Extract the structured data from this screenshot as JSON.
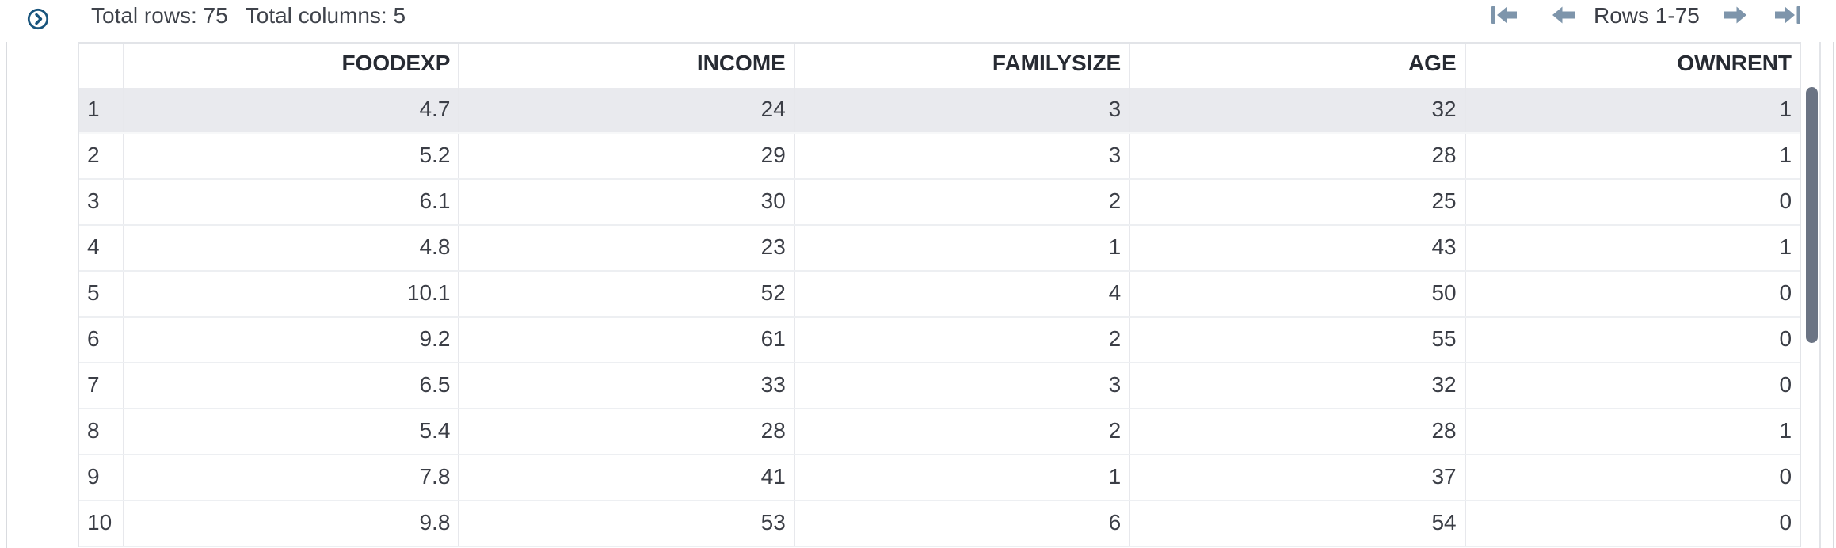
{
  "toolbar": {
    "total_rows": "Total rows: 75",
    "total_columns": "Total columns: 5"
  },
  "pagination": {
    "label": "Rows 1-75",
    "icons": {
      "first": "first-page-arrow",
      "previous": "previous-page-arrow",
      "next": "next-page-arrow",
      "last": "last-page-arrow"
    }
  },
  "expand_icon_name": "chevron-right-circle",
  "table": {
    "row_number_header": "",
    "columns": [
      "FOODEXP",
      "INCOME",
      "FAMILYSIZE",
      "AGE",
      "OWNRENT"
    ],
    "rows": [
      {
        "row_number": "1",
        "selected": true,
        "values": [
          "4.7",
          "24",
          "3",
          "32",
          "1"
        ]
      },
      {
        "row_number": "2",
        "selected": false,
        "values": [
          "5.2",
          "29",
          "3",
          "28",
          "1"
        ]
      },
      {
        "row_number": "3",
        "selected": false,
        "values": [
          "6.1",
          "30",
          "2",
          "25",
          "0"
        ]
      },
      {
        "row_number": "4",
        "selected": false,
        "values": [
          "4.8",
          "23",
          "1",
          "43",
          "1"
        ]
      },
      {
        "row_number": "5",
        "selected": false,
        "values": [
          "10.1",
          "52",
          "4",
          "50",
          "0"
        ]
      },
      {
        "row_number": "6",
        "selected": false,
        "values": [
          "9.2",
          "61",
          "2",
          "55",
          "0"
        ]
      },
      {
        "row_number": "7",
        "selected": false,
        "values": [
          "6.5",
          "33",
          "3",
          "32",
          "0"
        ]
      },
      {
        "row_number": "8",
        "selected": false,
        "values": [
          "5.4",
          "28",
          "2",
          "28",
          "1"
        ]
      },
      {
        "row_number": "9",
        "selected": false,
        "values": [
          "7.8",
          "41",
          "1",
          "37",
          "0"
        ]
      },
      {
        "row_number": "10",
        "selected": false,
        "values": [
          "9.8",
          "53",
          "6",
          "54",
          "0"
        ]
      }
    ]
  },
  "colors": {
    "arrow_accent": "#7e95ab",
    "expand_icon_blue": "#19557d",
    "selected_row_bg": "#e9eaee",
    "scrollbar_thumb": "#6b7484",
    "header_text": "#272b33",
    "body_text": "#3b3e46",
    "grid_border": "#e7e8ec"
  }
}
